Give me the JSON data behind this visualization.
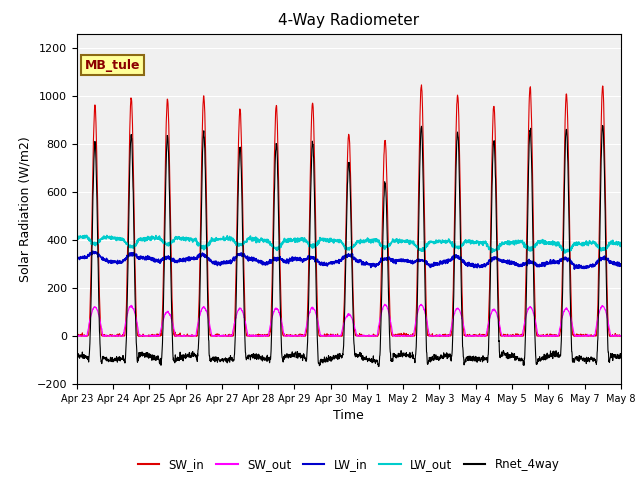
{
  "title": "4-Way Radiometer",
  "xlabel": "Time",
  "ylabel": "Solar Radiation (W/m2)",
  "ylim": [
    -200,
    1260
  ],
  "yticks": [
    -200,
    0,
    200,
    400,
    600,
    800,
    1000,
    1200
  ],
  "plot_bg_color": "#f0f0f0",
  "fig_bg_color": "#ffffff",
  "annotation_text": "MB_tule",
  "annotation_box_color": "#ffff99",
  "annotation_box_edge": "#8B6914",
  "series_colors": {
    "SW_in": "#dd0000",
    "SW_out": "#ff00ff",
    "LW_in": "#0000cc",
    "LW_out": "#00cccc",
    "Rnet_4way": "#000000"
  },
  "x_tick_labels": [
    "Apr 23",
    "Apr 24",
    "Apr 25",
    "Apr 26",
    "Apr 27",
    "Apr 28",
    "Apr 29",
    "Apr 30",
    "May 1",
    "May 2",
    "May 3",
    "May 4",
    "May 5",
    "May 6",
    "May 7",
    "May 8"
  ],
  "n_days": 15,
  "pts_per_day": 144
}
